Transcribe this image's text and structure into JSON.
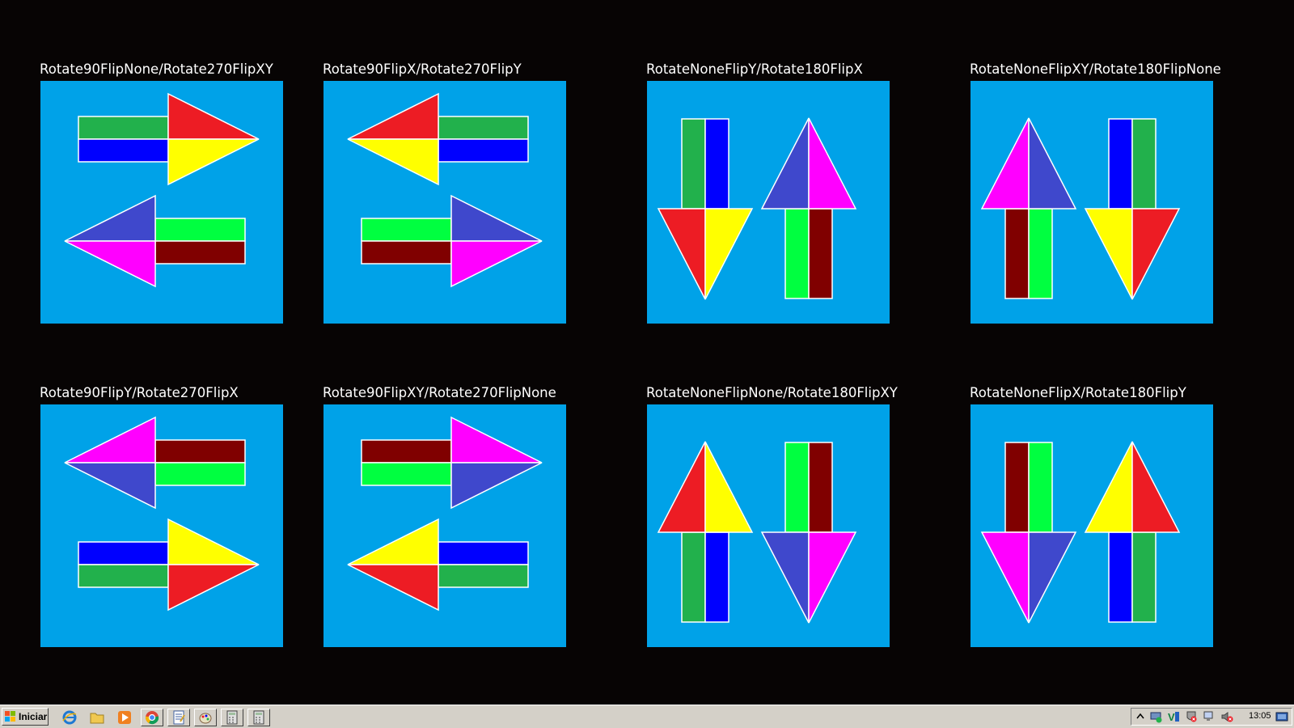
{
  "panels": [
    {
      "title": "Rotate90FlipNone/Rotate270FlipXY",
      "arrows": [
        {
          "dir": "right",
          "colors": [
            "#22b14c",
            "#0000ff",
            "#ed1c24",
            "#ffff00"
          ]
        },
        {
          "dir": "left",
          "colors": [
            "#00ff40",
            "#800000",
            "#3f48cc",
            "#ff00ff"
          ]
        }
      ]
    },
    {
      "title": "Rotate90FlipX/Rotate270FlipY",
      "arrows": [
        {
          "dir": "left",
          "colors": [
            "#22b14c",
            "#0000ff",
            "#ed1c24",
            "#ffff00"
          ]
        },
        {
          "dir": "right",
          "colors": [
            "#00ff40",
            "#800000",
            "#3f48cc",
            "#ff00ff"
          ]
        }
      ]
    },
    {
      "title": "RotateNoneFlipY/Rotate180FlipX",
      "arrows": [
        {
          "dir": "down",
          "colors": [
            "#22b14c",
            "#0000ff",
            "#ed1c24",
            "#ffff00"
          ]
        },
        {
          "dir": "up",
          "colors": [
            "#00ff40",
            "#800000",
            "#3f48cc",
            "#ff00ff"
          ]
        }
      ]
    },
    {
      "title": "RotateNoneFlipXY/Rotate180FlipNone",
      "arrows": [
        {
          "dir": "up",
          "colors": [
            "#800000",
            "#00ff40",
            "#ff00ff",
            "#3f48cc"
          ]
        },
        {
          "dir": "down",
          "colors": [
            "#0000ff",
            "#22b14c",
            "#ffff00",
            "#ed1c24"
          ]
        }
      ]
    },
    {
      "title": "Rotate90FlipY/Rotate270FlipX",
      "arrows": [
        {
          "dir": "left",
          "colors": [
            "#800000",
            "#00ff40",
            "#ff00ff",
            "#3f48cc"
          ]
        },
        {
          "dir": "right",
          "colors": [
            "#0000ff",
            "#22b14c",
            "#ffff00",
            "#ed1c24"
          ]
        }
      ]
    },
    {
      "title": "Rotate90FlipXY/Rotate270FlipNone",
      "arrows": [
        {
          "dir": "right",
          "colors": [
            "#800000",
            "#00ff40",
            "#ff00ff",
            "#3f48cc"
          ]
        },
        {
          "dir": "left",
          "colors": [
            "#0000ff",
            "#22b14c",
            "#ffff00",
            "#ed1c24"
          ]
        }
      ]
    },
    {
      "title": "RotateNoneFlipNone/Rotate180FlipXY",
      "arrows": [
        {
          "dir": "up",
          "colors": [
            "#22b14c",
            "#0000ff",
            "#ed1c24",
            "#ffff00"
          ]
        },
        {
          "dir": "down",
          "colors": [
            "#00ff40",
            "#800000",
            "#3f48cc",
            "#ff00ff"
          ]
        }
      ]
    },
    {
      "title": "RotateNoneFlipX/Rotate180FlipY",
      "arrows": [
        {
          "dir": "down",
          "colors": [
            "#800000",
            "#00ff40",
            "#ff00ff",
            "#3f48cc"
          ]
        },
        {
          "dir": "up",
          "colors": [
            "#0000ff",
            "#22b14c",
            "#ffff00",
            "#ed1c24"
          ]
        }
      ]
    }
  ],
  "colors": {
    "background": "#070404",
    "panel": "#00a2e8",
    "outline": "#ffffff"
  },
  "taskbar": {
    "start_label": "Iniciar",
    "quick_launch": [
      "internet-explorer-icon",
      "folder-icon",
      "media-player-icon",
      "chrome-icon",
      "notepad-icon",
      "paint-icon",
      "calculator-icon",
      "calculator-icon"
    ],
    "tray_icons": [
      "chevron-up-icon",
      "network-icon",
      "v-icon",
      "shield-icon",
      "monitor-icon",
      "volume-muted-icon"
    ],
    "clock": "13:05"
  }
}
